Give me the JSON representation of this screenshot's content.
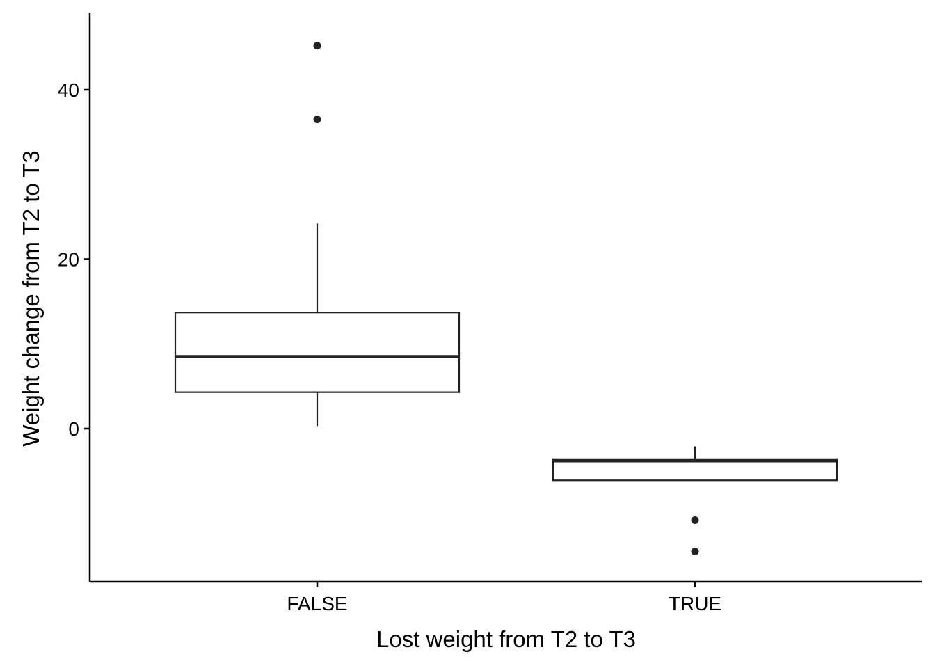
{
  "chart_data": {
    "type": "boxplot",
    "title": "",
    "xlabel": "Lost weight from T2 to T3",
    "ylabel": "Weight change from T2 to T3",
    "ylim": [
      -18,
      49
    ],
    "yticks": [
      0,
      20,
      40
    ],
    "ytick_labels": [
      "0",
      "20",
      "40"
    ],
    "categories": [
      "FALSE",
      "TRUE"
    ],
    "boxes": [
      {
        "category": "FALSE",
        "whisker_low": 0.3,
        "q1": 4.3,
        "median": 8.5,
        "q3": 13.7,
        "whisker_high": 24.2,
        "outliers": [
          36.5,
          45.2
        ]
      },
      {
        "category": "TRUE",
        "whisker_low": -6.1,
        "q1": -6.1,
        "median": -3.8,
        "q3": -3.6,
        "whisker_high": -2.1,
        "outliers": [
          -10.8,
          -14.5
        ]
      }
    ],
    "grid": false,
    "legend": "none",
    "colors": {
      "box_fill": "#ffffff",
      "box_stroke": "#222222",
      "outlier": "#222222",
      "axis": "#000000"
    }
  }
}
